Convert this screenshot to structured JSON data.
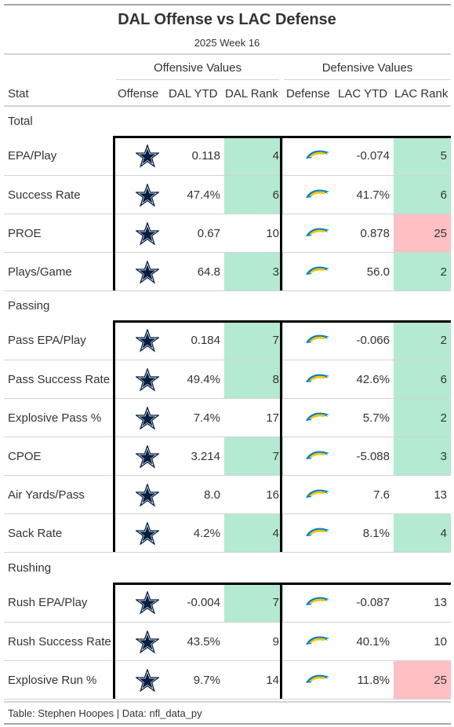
{
  "title": "DAL Offense vs LAC Defense",
  "subtitle": "2025 Week 16",
  "spanners": {
    "offense": "Offensive Values",
    "defense": "Defensive Values"
  },
  "columns": {
    "stat": "Stat",
    "offense": "Offense",
    "dal_ytd": "DAL YTD",
    "dal_rank": "DAL Rank",
    "defense": "Defense",
    "lac_ytd": "LAC YTD",
    "lac_rank": "LAC Rank"
  },
  "colors": {
    "good": "#b3ead1",
    "bad": "#ffc0c3",
    "cowboys_navy": "#041e42",
    "chargers_blue": "#0080c6",
    "chargers_gold": "#ffc20e"
  },
  "icons": {
    "offense": "cowboys-star-icon",
    "defense": "chargers-bolt-icon"
  },
  "footer": "Table: Stephen Hoopes | Data: nfl_data_py",
  "chart_data": {
    "type": "table",
    "groups": [
      {
        "name": "Total",
        "rows": [
          {
            "stat": "EPA/Play",
            "dal_ytd": "0.118",
            "dal_rank": 4,
            "lac_ytd": "-0.074",
            "lac_rank": 5
          },
          {
            "stat": "Success Rate",
            "dal_ytd": "47.4%",
            "dal_rank": 6,
            "lac_ytd": "41.7%",
            "lac_rank": 6
          },
          {
            "stat": "PROE",
            "dal_ytd": "0.67",
            "dal_rank": 10,
            "lac_ytd": "0.878",
            "lac_rank": 25
          },
          {
            "stat": "Plays/Game",
            "dal_ytd": "64.8",
            "dal_rank": 3,
            "lac_ytd": "56.0",
            "lac_rank": 2
          }
        ]
      },
      {
        "name": "Passing",
        "rows": [
          {
            "stat": "Pass EPA/Play",
            "dal_ytd": "0.184",
            "dal_rank": 7,
            "lac_ytd": "-0.066",
            "lac_rank": 2
          },
          {
            "stat": "Pass Success Rate",
            "dal_ytd": "49.4%",
            "dal_rank": 8,
            "lac_ytd": "42.6%",
            "lac_rank": 6
          },
          {
            "stat": "Explosive Pass %",
            "dal_ytd": "7.4%",
            "dal_rank": 17,
            "lac_ytd": "5.7%",
            "lac_rank": 2
          },
          {
            "stat": "CPOE",
            "dal_ytd": "3.214",
            "dal_rank": 7,
            "lac_ytd": "-5.088",
            "lac_rank": 3
          },
          {
            "stat": "Air Yards/Pass",
            "dal_ytd": "8.0",
            "dal_rank": 16,
            "lac_ytd": "7.6",
            "lac_rank": 13
          },
          {
            "stat": "Sack Rate",
            "dal_ytd": "4.2%",
            "dal_rank": 4,
            "lac_ytd": "8.1%",
            "lac_rank": 4
          }
        ]
      },
      {
        "name": "Rushing",
        "rows": [
          {
            "stat": "Rush EPA/Play",
            "dal_ytd": "-0.004",
            "dal_rank": 7,
            "lac_ytd": "-0.087",
            "lac_rank": 13
          },
          {
            "stat": "Rush Success Rate",
            "dal_ytd": "43.5%",
            "dal_rank": 9,
            "lac_ytd": "40.1%",
            "lac_rank": 10
          },
          {
            "stat": "Explosive Run %",
            "dal_ytd": "9.7%",
            "dal_rank": 14,
            "lac_ytd": "11.8%",
            "lac_rank": 25
          }
        ]
      }
    ]
  }
}
